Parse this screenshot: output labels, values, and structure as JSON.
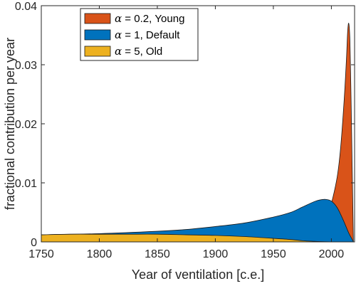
{
  "chart_data": {
    "type": "area",
    "xlabel": "Year of ventilation [c.e.]",
    "ylabel": "fractional contribution per year",
    "xlim": [
      1750,
      2020
    ],
    "ylim": [
      0,
      0.04
    ],
    "x_ticks": [
      1750,
      1800,
      1850,
      1900,
      1950,
      2000
    ],
    "x_tick_labels": [
      "1750",
      "1800",
      "1850",
      "1900",
      "1950",
      "2000"
    ],
    "y_ticks": [
      0,
      0.01,
      0.02,
      0.03,
      0.04
    ],
    "y_tick_labels": [
      "0",
      "0.01",
      "0.02",
      "0.03",
      "0.04"
    ],
    "grid": false,
    "legend_position": "top-left",
    "series": [
      {
        "name": "α = 0.2, Young",
        "legend_symbol": "α",
        "legend_rest": " = 0.2, Young",
        "color": "#D95319",
        "x": [
          1750,
          1800,
          1850,
          1900,
          1950,
          1970,
          1985,
          1995,
          2000,
          2005,
          2008,
          2011,
          2013,
          2014,
          2015,
          2016,
          2017,
          2018,
          2019
        ],
        "y": [
          0,
          0,
          0,
          0,
          0,
          0.0001,
          0.0008,
          0.0035,
          0.0065,
          0.011,
          0.016,
          0.024,
          0.031,
          0.0355,
          0.037,
          0.034,
          0.024,
          0.012,
          0.0
        ]
      },
      {
        "name": "α = 1, Default",
        "legend_symbol": "α",
        "legend_rest": " = 1, Default",
        "color": "#0072BD",
        "x": [
          1750,
          1800,
          1850,
          1875,
          1900,
          1925,
          1950,
          1965,
          1975,
          1985,
          1990,
          1995,
          2000,
          2005,
          2010,
          2015,
          2018,
          2019
        ],
        "y": [
          0.0012,
          0.0014,
          0.0018,
          0.0021,
          0.0026,
          0.0032,
          0.0042,
          0.005,
          0.0059,
          0.0068,
          0.0071,
          0.0072,
          0.0069,
          0.0058,
          0.0038,
          0.0015,
          0.0004,
          0.0
        ]
      },
      {
        "name": "α = 5, Old",
        "legend_symbol": "α",
        "legend_rest": " = 5, Old",
        "color": "#EDB120",
        "x": [
          1750,
          1775,
          1800,
          1825,
          1850,
          1875,
          1900,
          1925,
          1950,
          1965,
          1975,
          1985,
          1995,
          2005,
          2015,
          2019
        ],
        "y": [
          0.0012,
          0.0013,
          0.0013,
          0.0013,
          0.0013,
          0.0012,
          0.0011,
          0.0009,
          0.0006,
          0.0004,
          0.0002,
          0.0001,
          3e-05,
          1e-05,
          0.0,
          0.0
        ]
      }
    ]
  }
}
